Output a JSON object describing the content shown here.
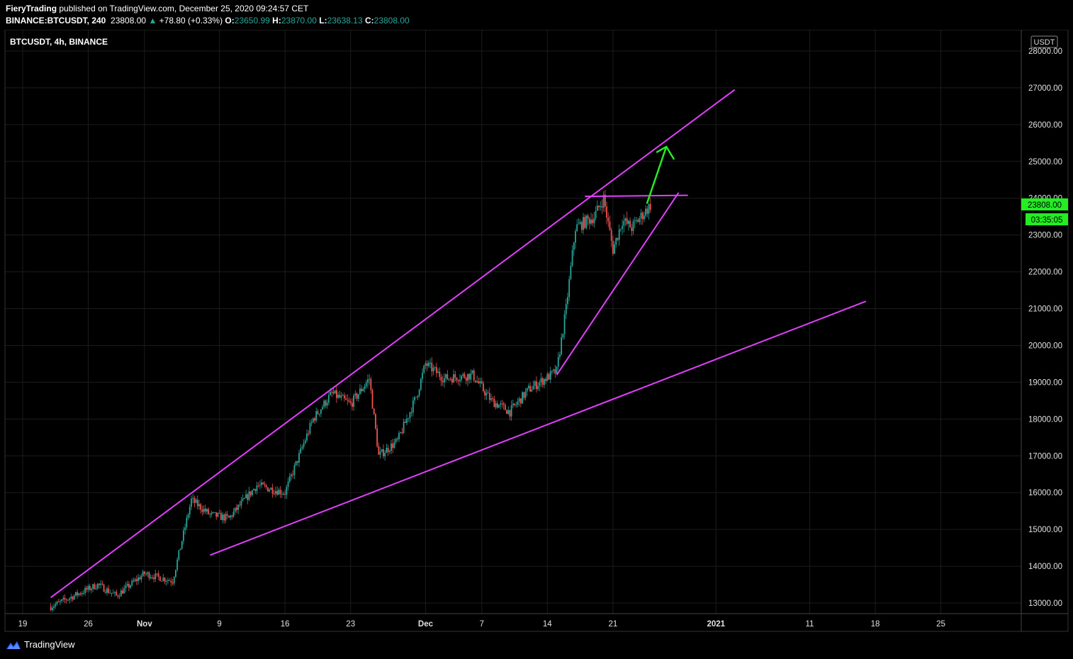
{
  "header": {
    "author": "FieryTrading",
    "published": "published on TradingView.com, December 25, 2020 09:24:57 CET",
    "symbol": "BINANCE:BTCUSDT, 240",
    "price": "23808.00",
    "change_arrow": "▲",
    "change": "+78.80 (+0.33%)",
    "o_label": "O:",
    "o_value": "23650.99",
    "h_label": "H:",
    "h_value": "23870.00",
    "l_label": "L:",
    "l_value": "23638.13",
    "c_label": "C:",
    "c_value": "23808.00"
  },
  "chart_label": "BTCUSDT, 4h, BINANCE",
  "currency_badge": "USDT",
  "price_tag": "23808.00",
  "countdown_tag": "03:35:05",
  "footer_brand": "TradingView",
  "colors": {
    "background": "#000000",
    "grid": "#1c1c1c",
    "up_candle": "#26a69a",
    "down_candle": "#ef5350",
    "trendline": "#e040fb",
    "arrow": "#22ee22",
    "price_tag": "#22ee22"
  },
  "chart_data": {
    "type": "candlestick",
    "timeframe": "4h",
    "y_axis_labels": [
      "28000.00",
      "27000.00",
      "26000.00",
      "25000.00",
      "24000.00",
      "23000.00",
      "22000.00",
      "21000.00",
      "20000.00",
      "19000.00",
      "18000.00",
      "17000.00",
      "16000.00",
      "15000.00",
      "14000.00",
      "13000.00"
    ],
    "ylim": [
      12800,
      28200
    ],
    "x_axis_labels": [
      "19",
      "26",
      "Nov",
      "9",
      "16",
      "23",
      "Dec",
      "7",
      "14",
      "21",
      "2021",
      "11",
      "18",
      "25"
    ],
    "x_axis_dates": [
      "2020-10-19",
      "2020-10-26",
      "2020-11-01",
      "2020-11-09",
      "2020-11-16",
      "2020-11-23",
      "2020-12-01",
      "2020-12-07",
      "2020-12-14",
      "2020-12-21",
      "2021-01-01",
      "2021-01-11",
      "2021-01-18",
      "2021-01-25"
    ],
    "price_path": [
      [
        "2020-10-22",
        12900
      ],
      [
        "2020-10-27",
        13500
      ],
      [
        "2020-10-29",
        13200
      ],
      [
        "2020-11-01",
        13800
      ],
      [
        "2020-11-04",
        13600
      ],
      [
        "2020-11-06",
        15800
      ],
      [
        "2020-11-08",
        15400
      ],
      [
        "2020-11-10",
        15300
      ],
      [
        "2020-11-13",
        16200
      ],
      [
        "2020-11-16",
        16000
      ],
      [
        "2020-11-19",
        18000
      ],
      [
        "2020-11-21",
        18700
      ],
      [
        "2020-11-23",
        18400
      ],
      [
        "2020-11-25",
        19100
      ],
      [
        "2020-11-26",
        17000
      ],
      [
        "2020-11-28",
        17400
      ],
      [
        "2020-11-30",
        18600
      ],
      [
        "2020-12-01",
        19500
      ],
      [
        "2020-12-03",
        19100
      ],
      [
        "2020-12-06",
        19200
      ],
      [
        "2020-12-08",
        18500
      ],
      [
        "2020-12-10",
        18200
      ],
      [
        "2020-12-12",
        18800
      ],
      [
        "2020-12-15",
        19300
      ],
      [
        "2020-12-16",
        21000
      ],
      [
        "2020-12-17",
        23200
      ],
      [
        "2020-12-19",
        23500
      ],
      [
        "2020-12-20",
        24000
      ],
      [
        "2020-12-21",
        22600
      ],
      [
        "2020-12-22",
        23400
      ],
      [
        "2020-12-23",
        23200
      ],
      [
        "2020-12-25",
        23808
      ]
    ],
    "annotations": {
      "trendlines": [
        {
          "name": "upper-channel-line",
          "from": [
            "2020-10-22",
            13150
          ],
          "to": [
            "2021-01-03",
            26950
          ]
        },
        {
          "name": "lower-channel-line",
          "from": [
            "2020-11-08",
            14300
          ],
          "to": [
            "2021-01-17",
            21200
          ]
        },
        {
          "name": "resistance-line",
          "from": [
            "2020-12-18",
            24050
          ],
          "to": [
            "2020-12-29",
            24080
          ]
        },
        {
          "name": "rising-support-line",
          "from": [
            "2020-12-15",
            19200
          ],
          "to": [
            "2020-12-28",
            24150
          ]
        }
      ],
      "arrow": {
        "from": [
          "2020-12-25",
          23850
        ],
        "to": [
          "2020-12-27",
          25400
        ]
      }
    }
  }
}
